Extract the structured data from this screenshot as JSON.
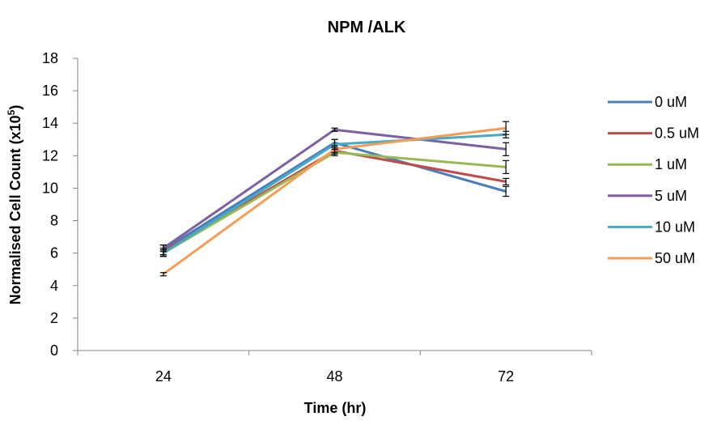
{
  "chart_data": {
    "type": "line",
    "title": "NPM /ALK",
    "xlabel": "Time (hr)",
    "ylabel": "Normalised Cell Count (x10",
    "ylabel_sup": "5",
    "ylabel_end": ")",
    "categories": [
      "24",
      "48",
      "72"
    ],
    "ylim": [
      0,
      18
    ],
    "yticks": [
      0,
      2,
      4,
      6,
      8,
      10,
      12,
      14,
      16,
      18
    ],
    "grid": false,
    "legend_position": "right",
    "series": [
      {
        "name": "0 uM",
        "color": "#4a7ebb",
        "values": [
          6.2,
          12.8,
          9.8
        ],
        "errors": [
          0.3,
          0.2,
          0.3
        ]
      },
      {
        "name": "0.5 uM",
        "color": "#be4b48",
        "values": [
          6.1,
          12.3,
          10.4
        ],
        "errors": [
          0.2,
          0.2,
          0.2
        ]
      },
      {
        "name": "1 uM",
        "color": "#98b954",
        "values": [
          6.0,
          12.2,
          11.3
        ],
        "errors": [
          0.2,
          0.2,
          0.4
        ]
      },
      {
        "name": "5 uM",
        "color": "#7d60a0",
        "values": [
          6.3,
          13.6,
          12.4
        ],
        "errors": [
          0.2,
          0.1,
          0.4
        ]
      },
      {
        "name": "10 uM",
        "color": "#46aac5",
        "values": [
          6.0,
          12.7,
          13.3
        ],
        "errors": [
          0.2,
          0.3,
          0.2
        ]
      },
      {
        "name": "50 uM",
        "color": "#f59d56",
        "values": [
          4.7,
          12.4,
          13.7
        ],
        "errors": [
          0.1,
          0.2,
          0.4
        ]
      }
    ]
  }
}
